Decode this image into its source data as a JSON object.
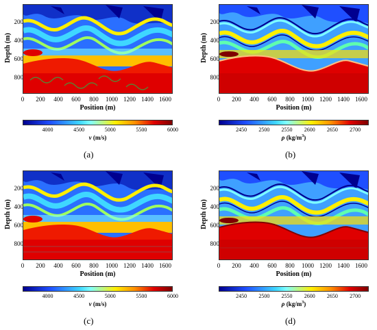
{
  "panels": [
    {
      "id": "a",
      "caption": "(a)",
      "ylabel": "Depth (m)",
      "xlabel": "Position (m)",
      "yticks": [
        "200",
        "400",
        "600",
        "800"
      ],
      "xticks": [
        "0",
        "200",
        "400",
        "600",
        "800",
        "1000",
        "1200",
        "1400",
        "1600"
      ],
      "colorbar_ticks": [
        "4000",
        "4500",
        "5000",
        "5500",
        "6000"
      ],
      "colorbar_symbol": "v",
      "colorbar_unit": " (m/s)",
      "colorbar_unit_sup": "",
      "colorbar_unit_tail": "",
      "colorbar_range": [
        3600,
        6000
      ],
      "colorbar_tick_values": [
        4000,
        4500,
        5000,
        5500,
        6000
      ]
    },
    {
      "id": "b",
      "caption": "(b)",
      "ylabel": "Depth (m)",
      "xlabel": "Position (m)",
      "yticks": [
        "200",
        "400",
        "600",
        "800"
      ],
      "xticks": [
        "0",
        "200",
        "400",
        "600",
        "800",
        "1000",
        "1200",
        "1400",
        "1600"
      ],
      "colorbar_ticks": [
        "2450",
        "2500",
        "2550",
        "2600",
        "2650",
        "2700"
      ],
      "colorbar_symbol": "ρ",
      "colorbar_unit": " (kg/m",
      "colorbar_unit_sup": "3",
      "colorbar_unit_tail": ")",
      "colorbar_range": [
        2400,
        2730
      ],
      "colorbar_tick_values": [
        2450,
        2500,
        2550,
        2600,
        2650,
        2700
      ]
    },
    {
      "id": "c",
      "caption": "(c)",
      "ylabel": "Depth (m)",
      "xlabel": "Position (m)",
      "yticks": [
        "200",
        "400",
        "600",
        "800"
      ],
      "xticks": [
        "0",
        "200",
        "400",
        "600",
        "800",
        "1000",
        "1200",
        "1400",
        "1600"
      ],
      "colorbar_ticks": [
        "4000",
        "4500",
        "5000",
        "5500",
        "6000"
      ],
      "colorbar_symbol": "v",
      "colorbar_unit": " (m/s)",
      "colorbar_unit_sup": "",
      "colorbar_unit_tail": "",
      "colorbar_range": [
        3600,
        6000
      ],
      "colorbar_tick_values": [
        4000,
        4500,
        5000,
        5500,
        6000
      ]
    },
    {
      "id": "d",
      "caption": "(d)",
      "ylabel": "Depth (m)",
      "xlabel": "Position (m)",
      "yticks": [
        "200",
        "400",
        "600",
        "800"
      ],
      "xticks": [
        "0",
        "200",
        "400",
        "600",
        "800",
        "1000",
        "1200",
        "1400",
        "1600"
      ],
      "colorbar_ticks": [
        "2450",
        "2500",
        "2550",
        "2600",
        "2650",
        "2700"
      ],
      "colorbar_symbol": "ρ",
      "colorbar_unit": " (kg/m",
      "colorbar_unit_sup": "3",
      "colorbar_unit_tail": ")",
      "colorbar_range": [
        2400,
        2730
      ],
      "colorbar_tick_values": [
        2450,
        2500,
        2550,
        2600,
        2650,
        2700
      ]
    }
  ],
  "colormap": "jet",
  "colors": {
    "deep_blue": "#00008f",
    "blue": "#1f4fff",
    "cyan": "#3fd7ff",
    "light_cyan": "#7fffff",
    "yellow": "#ffef00",
    "orange": "#ff8f00",
    "red": "#df0000",
    "dark_red": "#7f0000"
  }
}
